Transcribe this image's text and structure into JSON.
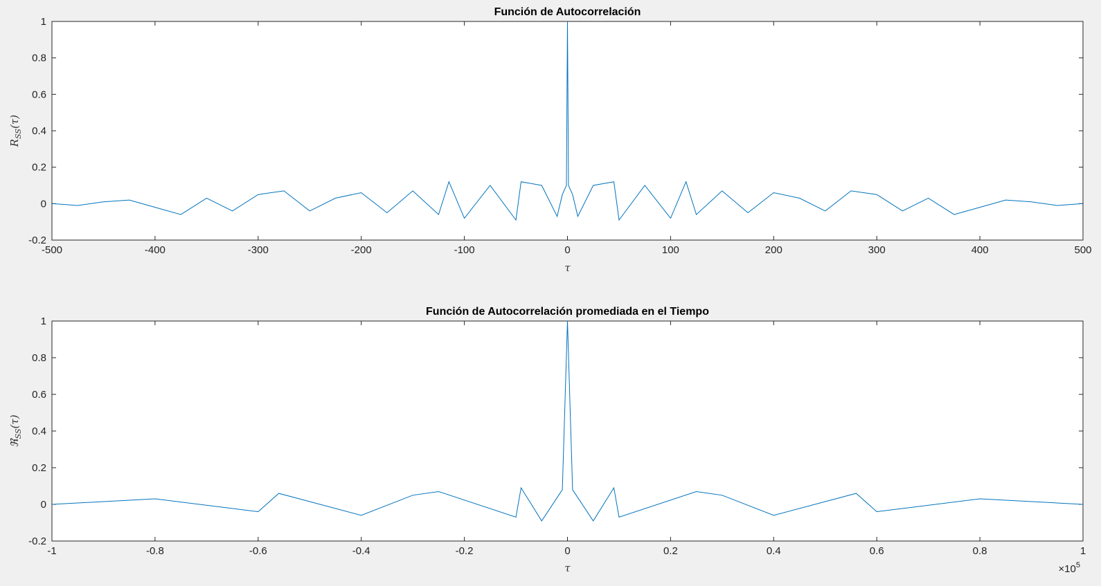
{
  "chart_data": [
    {
      "type": "line",
      "title": "Función de Autocorrelación",
      "xlabel": "τ",
      "ylabel": "R_SS(τ)",
      "ylabel_main": "R",
      "ylabel_sub": "SS",
      "ylabel_arg": "(τ)",
      "xlim": [
        -500,
        500
      ],
      "ylim": [
        -0.2,
        1
      ],
      "xticks": [
        -500,
        -400,
        -300,
        -200,
        -100,
        0,
        100,
        200,
        300,
        400,
        500
      ],
      "xtick_labels": [
        "-500",
        "-400",
        "-300",
        "-200",
        "-100",
        "0",
        "100",
        "200",
        "300",
        "400",
        "500"
      ],
      "yticks": [
        -0.2,
        0,
        0.2,
        0.4,
        0.6,
        0.8,
        1
      ],
      "ytick_labels": [
        "-0.2",
        "0",
        "0.2",
        "0.4",
        "0.6",
        "0.8",
        "1"
      ],
      "color": "#0072bd",
      "series": [
        {
          "x": [
            -500,
            -475,
            -450,
            -425,
            -400,
            -375,
            -350,
            -325,
            -300,
            -275,
            -250,
            -225,
            -200,
            -175,
            -150,
            -125,
            -115,
            -100,
            -75,
            -50,
            -45,
            -25,
            -10,
            -5,
            -1,
            0,
            1,
            5,
            10,
            25,
            45,
            50,
            75,
            100,
            115,
            125,
            150,
            175,
            200,
            225,
            250,
            275,
            300,
            325,
            350,
            375,
            400,
            425,
            450,
            475,
            500
          ],
          "y": [
            0,
            -0.01,
            0.01,
            0.02,
            -0.02,
            -0.06,
            0.03,
            -0.04,
            0.05,
            0.07,
            -0.04,
            0.03,
            0.06,
            -0.05,
            0.07,
            -0.06,
            0.12,
            -0.08,
            0.1,
            -0.09,
            0.12,
            0.1,
            -0.07,
            0.05,
            0.1,
            1,
            0.1,
            0.05,
            -0.07,
            0.1,
            0.12,
            -0.09,
            0.1,
            -0.08,
            0.12,
            -0.06,
            0.07,
            -0.05,
            0.06,
            0.03,
            -0.04,
            0.07,
            0.05,
            -0.04,
            0.03,
            -0.06,
            -0.02,
            0.02,
            0.01,
            -0.01,
            0
          ]
        }
      ]
    },
    {
      "type": "line",
      "title": "Función de Autocorrelación promediada en el Tiempo",
      "xlabel": "τ",
      "ylabel": "ℜ_SS(τ)",
      "ylabel_main": "ℜ",
      "ylabel_sub": "SS",
      "ylabel_arg": "(τ)",
      "xlim": [
        -1,
        1
      ],
      "x_exponent": "×10⁵",
      "x_exponent_base": "×10",
      "x_exponent_power": "5",
      "ylim": [
        -0.2,
        1
      ],
      "xticks": [
        -1,
        -0.8,
        -0.6,
        -0.4,
        -0.2,
        0,
        0.2,
        0.4,
        0.6,
        0.8,
        1
      ],
      "xtick_labels": [
        "-1",
        "-0.8",
        "-0.6",
        "-0.4",
        "-0.2",
        "0",
        "0.2",
        "0.4",
        "0.6",
        "0.8",
        "1"
      ],
      "yticks": [
        -0.2,
        0,
        0.2,
        0.4,
        0.6,
        0.8,
        1
      ],
      "ytick_labels": [
        "-0.2",
        "0",
        "0.2",
        "0.4",
        "0.6",
        "0.8",
        "1"
      ],
      "color": "#0072bd",
      "series": [
        {
          "x": [
            -1,
            -0.8,
            -0.6,
            -0.56,
            -0.4,
            -0.3,
            -0.25,
            -0.1,
            -0.09,
            -0.05,
            -0.01,
            0,
            0.01,
            0.05,
            0.09,
            0.1,
            0.25,
            0.3,
            0.4,
            0.56,
            0.6,
            0.8,
            1
          ],
          "y": [
            0,
            0.03,
            -0.04,
            0.06,
            -0.06,
            0.05,
            0.07,
            -0.07,
            0.09,
            -0.09,
            0.08,
            1,
            0.08,
            -0.09,
            0.09,
            -0.07,
            0.07,
            0.05,
            -0.06,
            0.06,
            -0.04,
            0.03,
            0
          ]
        }
      ]
    }
  ]
}
